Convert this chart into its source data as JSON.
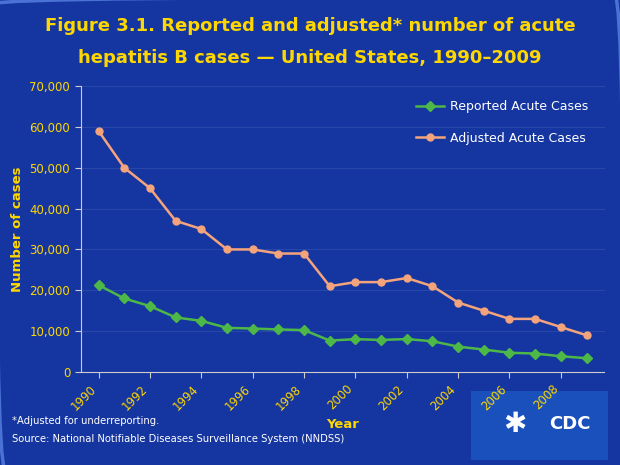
{
  "title_line1": "Figure 3.1. Reported and adjusted* number of acute",
  "title_line2": "hepatitis B cases — United States, 1990–2009",
  "title_color": "#FFD700",
  "title_fontsize": 13.0,
  "xlabel": "Year",
  "ylabel": "Number of cases",
  "axis_label_color": "#FFD700",
  "tick_label_color": "#FFD700",
  "background_outer": "#1535a0",
  "background_plot": "#1535a0",
  "axis_color": "#CCCCCC",
  "years": [
    1990,
    1991,
    1992,
    1993,
    1994,
    1995,
    1996,
    1997,
    1998,
    1999,
    2000,
    2001,
    2002,
    2003,
    2004,
    2005,
    2006,
    2007,
    2008,
    2009
  ],
  "reported": [
    21277,
    18003,
    16126,
    13361,
    12517,
    10805,
    10637,
    10416,
    10258,
    7694,
    8036,
    7844,
    8064,
    7526,
    6212,
    5494,
    4713,
    4519,
    3857,
    3371
  ],
  "adjusted": [
    59000,
    50000,
    45000,
    37000,
    35000,
    30000,
    30000,
    29000,
    29000,
    21000,
    22000,
    22000,
    23000,
    21000,
    17000,
    15000,
    13000,
    13000,
    11000,
    9000
  ],
  "reported_color": "#4db848",
  "adjusted_color": "#f4a47c",
  "line_width": 1.8,
  "marker_size": 5,
  "ylim": [
    0,
    70000
  ],
  "yticks": [
    0,
    10000,
    20000,
    30000,
    40000,
    50000,
    60000,
    70000
  ],
  "footnote_line1": "*Adjusted for underreporting.",
  "footnote_line2": "Source: National Notifiable Diseases Surveillance System (NNDSS)",
  "footnote_color": "#FFFFFF",
  "legend_text_color": "#FFFFFF",
  "grid_color": "#6688cc"
}
